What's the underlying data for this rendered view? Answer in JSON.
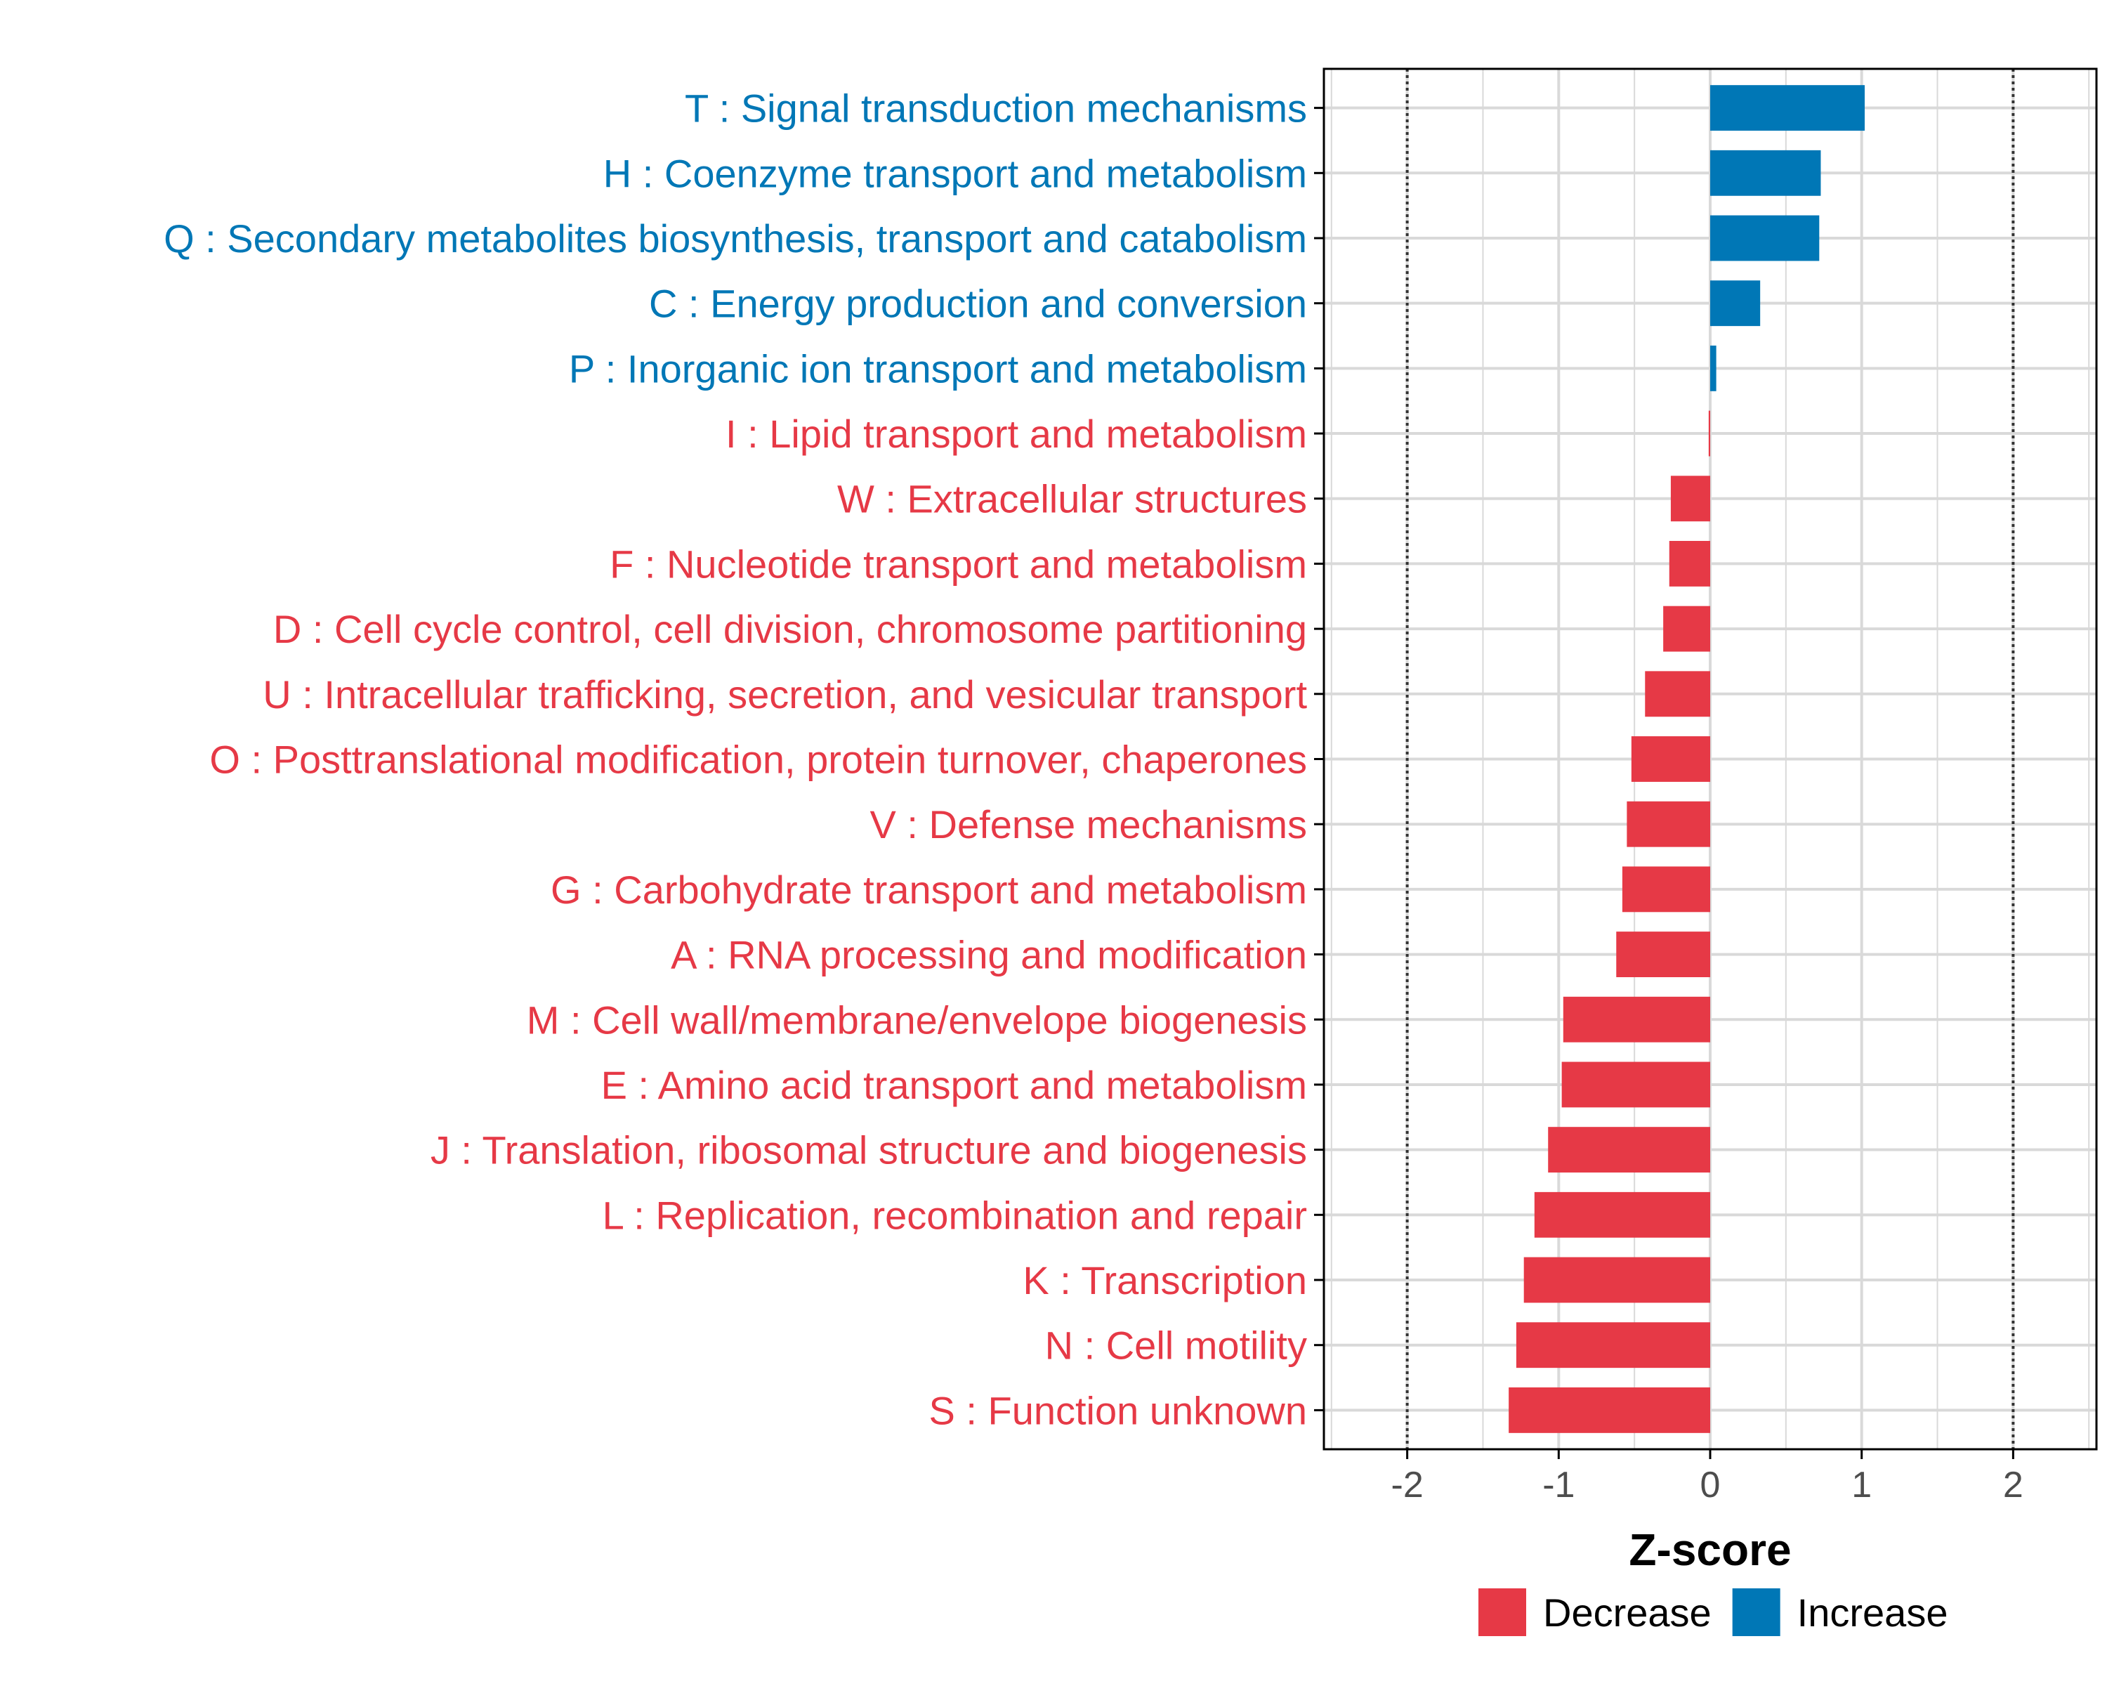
{
  "colors": {
    "decrease": "#E63946",
    "increase": "#0077B6",
    "grid": "#D9D9D9",
    "axis": "#000000",
    "ref_line": "#333333"
  },
  "chart_data": {
    "type": "bar",
    "orientation": "horizontal",
    "title": "",
    "xlabel": "Z-score",
    "ylabel": "",
    "xlim": [
      -2.55,
      2.55
    ],
    "xticks": [
      -2,
      -1,
      0,
      1,
      2
    ],
    "xtick_labels": [
      "-2",
      "-1",
      "0",
      "1",
      "2"
    ],
    "reference_lines": [
      -2,
      2
    ],
    "grid": true,
    "categories": [
      "T : Signal transduction mechanisms",
      "H : Coenzyme transport and metabolism",
      "Q : Secondary metabolites biosynthesis, transport and catabolism",
      "C : Energy production and conversion",
      "P : Inorganic ion transport and metabolism",
      "I : Lipid transport and metabolism",
      "W : Extracellular structures",
      "F : Nucleotide transport and metabolism",
      "D : Cell cycle control, cell division, chromosome partitioning",
      "U : Intracellular trafficking, secretion, and vesicular transport",
      "O : Posttranslational modification, protein turnover, chaperones",
      "V : Defense mechanisms",
      "G : Carbohydrate transport and metabolism",
      "A : RNA processing and modification",
      "M : Cell wall/membrane/envelope biogenesis",
      "E : Amino acid transport and metabolism",
      "J : Translation, ribosomal structure and biogenesis",
      "L : Replication, recombination and repair",
      "K : Transcription",
      "N : Cell motility",
      "S : Function unknown"
    ],
    "values": [
      1.02,
      0.73,
      0.72,
      0.33,
      0.04,
      -0.01,
      -0.26,
      -0.27,
      -0.31,
      -0.43,
      -0.52,
      -0.55,
      -0.58,
      -0.62,
      -0.97,
      -0.98,
      -1.07,
      -1.16,
      -1.23,
      -1.28,
      -1.33
    ],
    "groups": [
      "Increase",
      "Increase",
      "Increase",
      "Increase",
      "Increase",
      "Decrease",
      "Decrease",
      "Decrease",
      "Decrease",
      "Decrease",
      "Decrease",
      "Decrease",
      "Decrease",
      "Decrease",
      "Decrease",
      "Decrease",
      "Decrease",
      "Decrease",
      "Decrease",
      "Decrease",
      "Decrease"
    ],
    "legend": {
      "position": "bottom",
      "entries": [
        {
          "label": "Decrease",
          "color": "#E63946"
        },
        {
          "label": "Increase",
          "color": "#0077B6"
        }
      ]
    }
  }
}
